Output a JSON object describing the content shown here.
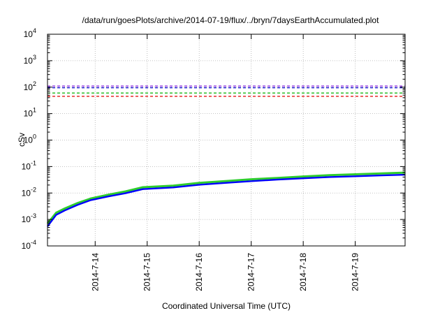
{
  "chart_data": {
    "type": "line",
    "title": "/data/run/goesPlots/archive/2014-07-19/flux/../bryn/7daysEarthAccumulated.plot",
    "xlabel": "Coordinated Universal Time (UTC)",
    "ylabel": "cSv",
    "yscale": "log",
    "ylim_exp": [
      -4,
      4
    ],
    "xlim_days": [
      "2014-07-13T02:00",
      "2014-07-19T23:00"
    ],
    "x_ticks": [
      "2014-7-14",
      "2014-7-15",
      "2014-7-16",
      "2014-7-17",
      "2014-7-18",
      "2014-7-19"
    ],
    "y_tick_base": "10",
    "y_tick_exponents": [
      "-4",
      "-3",
      "-2",
      "-1",
      "0",
      "1",
      "2",
      "3",
      "4"
    ],
    "grid": true,
    "reference_lines": [
      {
        "color": "#8a2be2",
        "value": 110
      },
      {
        "color": "#0000cc",
        "value": 95
      },
      {
        "color": "#00b000",
        "value": 60
      },
      {
        "color": "#e00000",
        "value": 45
      }
    ],
    "series": [
      {
        "color": "#2ecc2e",
        "x": [
          "2014-07-13T02:00",
          "2014-07-13T06:00",
          "2014-07-13T10:00",
          "2014-07-13T16:00",
          "2014-07-13T22:00",
          "2014-07-14T06:00",
          "2014-07-14T14:00",
          "2014-07-14T22:00",
          "2014-07-15T12:00",
          "2014-07-16T00:00",
          "2014-07-16T12:00",
          "2014-07-17T00:00",
          "2014-07-17T12:00",
          "2014-07-18T00:00",
          "2014-07-18T12:00",
          "2014-07-19T00:00",
          "2014-07-19T12:00",
          "2014-07-19T23:00"
        ],
        "y": [
          0.0007,
          0.0018,
          0.0026,
          0.0042,
          0.0062,
          0.0086,
          0.0115,
          0.0165,
          0.019,
          0.024,
          0.028,
          0.033,
          0.037,
          0.042,
          0.047,
          0.051,
          0.055,
          0.059
        ]
      },
      {
        "color": "#0000ff",
        "x": [
          "2014-07-13T02:00",
          "2014-07-13T06:00",
          "2014-07-13T10:00",
          "2014-07-13T16:00",
          "2014-07-13T22:00",
          "2014-07-14T06:00",
          "2014-07-14T14:00",
          "2014-07-14T22:00",
          "2014-07-15T12:00",
          "2014-07-16T00:00",
          "2014-07-16T12:00",
          "2014-07-17T00:00",
          "2014-07-17T12:00",
          "2014-07-18T00:00",
          "2014-07-18T12:00",
          "2014-07-19T00:00",
          "2014-07-19T12:00",
          "2014-07-19T23:00"
        ],
        "y": [
          0.00055,
          0.0015,
          0.0022,
          0.0036,
          0.0054,
          0.0074,
          0.0098,
          0.014,
          0.0162,
          0.0205,
          0.024,
          0.028,
          0.032,
          0.036,
          0.04,
          0.043,
          0.046,
          0.049
        ]
      }
    ]
  }
}
